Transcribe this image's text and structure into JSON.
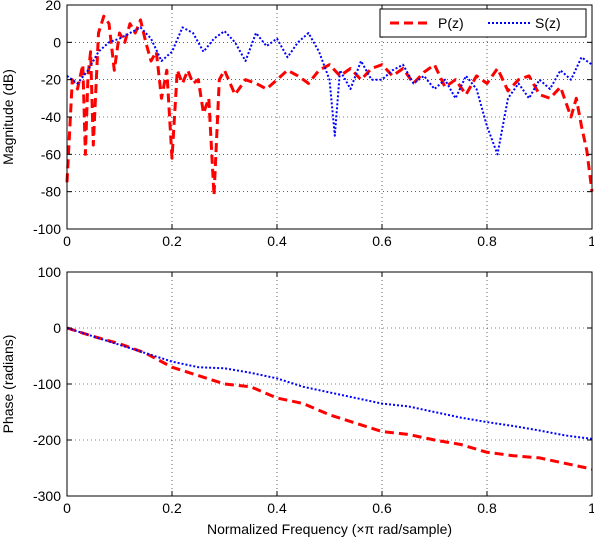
{
  "chart_data": [
    {
      "type": "line",
      "ylabel": "Magnitude (dB)",
      "xlabel": "",
      "xlim": [
        0,
        1
      ],
      "ylim": [
        -100,
        20
      ],
      "xticks": [
        "0",
        "0.2",
        "0.4",
        "0.6",
        "0.8",
        "1"
      ],
      "yticks": [
        "-100",
        "-80",
        "-60",
        "-40",
        "-20",
        "0",
        "20"
      ],
      "grid": true,
      "legend": {
        "position": "top-right",
        "entries": [
          "P(z)",
          "S(z)"
        ]
      },
      "series": [
        {
          "name": "P(z)",
          "color": "#ff0000",
          "style": "dashed",
          "x": [
            0,
            0.01,
            0.02,
            0.03,
            0.035,
            0.04,
            0.045,
            0.05,
            0.06,
            0.07,
            0.08,
            0.09,
            0.1,
            0.11,
            0.12,
            0.13,
            0.14,
            0.15,
            0.16,
            0.17,
            0.18,
            0.19,
            0.2,
            0.21,
            0.22,
            0.23,
            0.24,
            0.25,
            0.26,
            0.27,
            0.28,
            0.29,
            0.3,
            0.32,
            0.34,
            0.36,
            0.38,
            0.4,
            0.42,
            0.44,
            0.46,
            0.48,
            0.5,
            0.52,
            0.54,
            0.56,
            0.58,
            0.6,
            0.62,
            0.64,
            0.66,
            0.68,
            0.7,
            0.72,
            0.74,
            0.76,
            0.78,
            0.8,
            0.82,
            0.84,
            0.86,
            0.88,
            0.9,
            0.92,
            0.94,
            0.96,
            0.97,
            0.98,
            0.99,
            1.0
          ],
          "values": [
            -75,
            -20,
            -25,
            -12,
            -60,
            -18,
            -5,
            -55,
            5,
            14,
            10,
            -15,
            5,
            0,
            10,
            5,
            12,
            0,
            -10,
            -5,
            -30,
            -15,
            -62,
            -15,
            -22,
            -15,
            -22,
            -20,
            -38,
            -30,
            -82,
            -20,
            -15,
            -28,
            -20,
            -22,
            -25,
            -20,
            -15,
            -18,
            -22,
            -15,
            -12,
            -18,
            -14,
            -20,
            -14,
            -12,
            -18,
            -14,
            -22,
            -16,
            -12,
            -24,
            -20,
            -28,
            -18,
            -22,
            -14,
            -26,
            -20,
            -18,
            -28,
            -30,
            -24,
            -40,
            -30,
            -45,
            -58,
            -80
          ]
        },
        {
          "name": "S(z)",
          "color": "#0000ff",
          "style": "dotted",
          "x": [
            0,
            0.02,
            0.04,
            0.06,
            0.08,
            0.1,
            0.12,
            0.14,
            0.16,
            0.18,
            0.2,
            0.22,
            0.24,
            0.26,
            0.28,
            0.3,
            0.32,
            0.34,
            0.36,
            0.38,
            0.4,
            0.42,
            0.44,
            0.46,
            0.48,
            0.5,
            0.51,
            0.52,
            0.54,
            0.56,
            0.58,
            0.6,
            0.62,
            0.64,
            0.66,
            0.68,
            0.7,
            0.72,
            0.74,
            0.76,
            0.78,
            0.8,
            0.82,
            0.84,
            0.86,
            0.88,
            0.9,
            0.92,
            0.94,
            0.96,
            0.98,
            1.0
          ],
          "values": [
            -18,
            -22,
            -15,
            -5,
            0,
            2,
            5,
            8,
            2,
            -10,
            -5,
            8,
            5,
            -5,
            2,
            6,
            0,
            -10,
            5,
            -2,
            2,
            -8,
            0,
            5,
            -5,
            -20,
            -50,
            -15,
            -25,
            -10,
            -20,
            -20,
            -15,
            -12,
            -22,
            -18,
            -25,
            -20,
            -30,
            -18,
            -25,
            -45,
            -60,
            -30,
            -22,
            -30,
            -20,
            -25,
            -15,
            -20,
            -8,
            -12
          ]
        }
      ]
    },
    {
      "type": "line",
      "ylabel": "Phase (radians)",
      "xlabel": "Normalized Frequency (×π rad/sample)",
      "xlim": [
        0,
        1
      ],
      "ylim": [
        -300,
        100
      ],
      "xticks": [
        "0",
        "0.2",
        "0.4",
        "0.6",
        "0.8",
        "1"
      ],
      "yticks": [
        "-300",
        "-200",
        "-100",
        "0",
        "100"
      ],
      "grid": true,
      "series": [
        {
          "name": "P(z)",
          "color": "#ff0000",
          "style": "dashed",
          "x": [
            0,
            0.05,
            0.1,
            0.15,
            0.2,
            0.25,
            0.3,
            0.35,
            0.4,
            0.45,
            0.5,
            0.55,
            0.6,
            0.65,
            0.7,
            0.75,
            0.8,
            0.85,
            0.9,
            0.95,
            1.0
          ],
          "values": [
            0,
            -15,
            -28,
            -45,
            -70,
            -85,
            -100,
            -105,
            -125,
            -135,
            -155,
            -170,
            -185,
            -190,
            -200,
            -208,
            -222,
            -228,
            -232,
            -242,
            -252
          ]
        },
        {
          "name": "S(z)",
          "color": "#0000ff",
          "style": "dotted",
          "x": [
            0,
            0.05,
            0.1,
            0.15,
            0.2,
            0.25,
            0.3,
            0.35,
            0.4,
            0.45,
            0.5,
            0.55,
            0.6,
            0.65,
            0.7,
            0.75,
            0.8,
            0.85,
            0.9,
            0.95,
            1.0
          ],
          "values": [
            0,
            -15,
            -30,
            -45,
            -60,
            -70,
            -72,
            -80,
            -90,
            -105,
            -115,
            -125,
            -135,
            -140,
            -150,
            -160,
            -168,
            -175,
            -183,
            -192,
            -198
          ]
        }
      ]
    }
  ]
}
